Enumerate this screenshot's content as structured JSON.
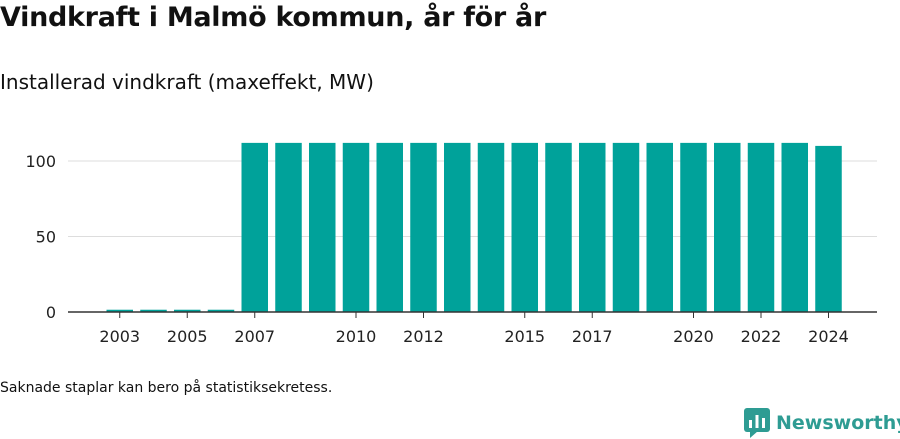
{
  "title": "Vindkraft i Malmö kommun, år för år",
  "subtitle": "Installerad vindkraft (maxeffekt, MW)",
  "footnote": "Saknade staplar kan bero på statistiksekretess.",
  "brand": {
    "name": "Newsworthy",
    "icon": "newsworthy-logo-icon",
    "color": "#2e9c93"
  },
  "colors": {
    "bar": "#00a29a",
    "grid": "#dddddd",
    "axis": "#333333"
  },
  "chart_data": {
    "type": "bar",
    "title": "Vindkraft i Malmö kommun, år för år",
    "subtitle": "Installerad vindkraft (maxeffekt, MW)",
    "xlabel": "",
    "ylabel": "",
    "categories": [
      "2003",
      "2004",
      "2005",
      "2006",
      "2007",
      "2008",
      "2009",
      "2010",
      "2011",
      "2012",
      "2013",
      "2014",
      "2015",
      "2016",
      "2017",
      "2018",
      "2019",
      "2020",
      "2021",
      "2022",
      "2023",
      "2024"
    ],
    "values": [
      1.5,
      1.5,
      1.5,
      1.5,
      112,
      112,
      112,
      112,
      112,
      112,
      112,
      112,
      112,
      112,
      112,
      112,
      112,
      112,
      112,
      112,
      112,
      110
    ],
    "x_tick_labels": [
      "2003",
      "2005",
      "2007",
      "2010",
      "2012",
      "2015",
      "2017",
      "2020",
      "2022",
      "2024"
    ],
    "y_ticks": [
      0,
      50,
      100
    ],
    "ylim": [
      0,
      120
    ],
    "grid": true,
    "legend": "none"
  }
}
